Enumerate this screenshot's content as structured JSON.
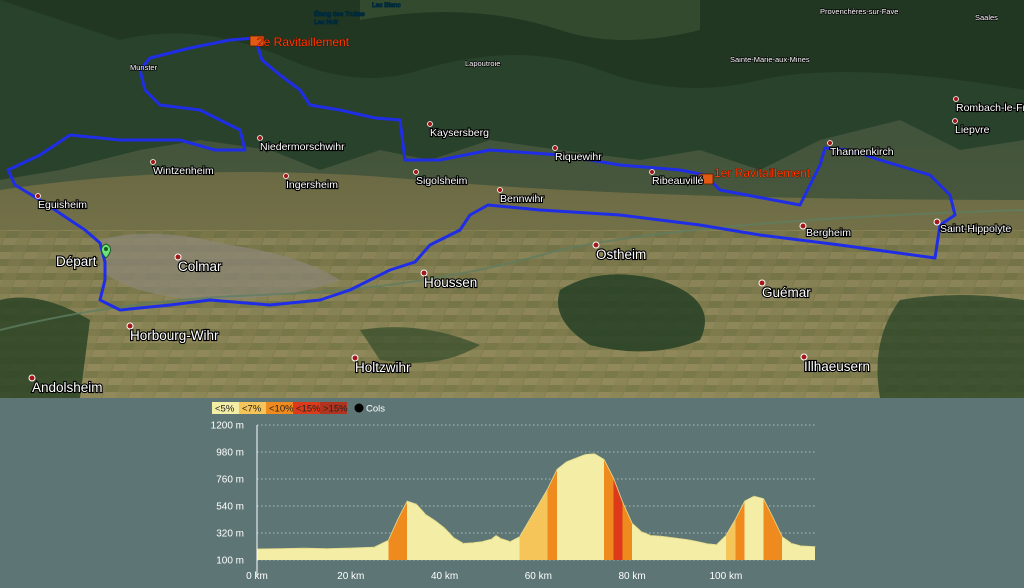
{
  "map": {
    "towns_major": [
      {
        "name": "Départ"
      },
      {
        "name": "Colmar"
      },
      {
        "name": "Horbourg-Wihr"
      },
      {
        "name": "Andolsheim"
      },
      {
        "name": "Holtzwihr"
      },
      {
        "name": "Houssen"
      },
      {
        "name": "Ostheim"
      },
      {
        "name": "Guémar"
      },
      {
        "name": "Illhaeusern"
      },
      {
        "name": "Bergheim"
      },
      {
        "name": "Saint-Hippolyte"
      }
    ],
    "towns_medium": [
      {
        "name": "Eguisheim"
      },
      {
        "name": "Wintzenheim"
      },
      {
        "name": "Ingersheim"
      },
      {
        "name": "Niedermorschwihr"
      },
      {
        "name": "Sigolsheim"
      },
      {
        "name": "Bennwihr"
      },
      {
        "name": "Kaysersberg"
      },
      {
        "name": "Riquewihr"
      },
      {
        "name": "Ribeauvillé"
      },
      {
        "name": "Thannenkirch"
      },
      {
        "name": "Liepvre"
      },
      {
        "name": "Rombach-le-Franc"
      }
    ],
    "towns_small": [
      {
        "name": "Munster"
      },
      {
        "name": "Lapoutroie"
      },
      {
        "name": "Sainte-Marie-aux-Mines"
      },
      {
        "name": "Provenchères-sur-Fave"
      },
      {
        "name": "Saales"
      }
    ],
    "lakes": [
      {
        "name": "Lac Blanc"
      },
      {
        "name": "Étang des Truites"
      },
      {
        "name": "Lac Noir"
      }
    ],
    "ravitaillements": [
      {
        "label": "2e Ravitaillement"
      },
      {
        "label": "1er Ravitaillement"
      }
    ]
  },
  "legend": {
    "items": [
      {
        "label": "<5%",
        "color": "#f3eda6"
      },
      {
        "label": "<7%",
        "color": "#f6c55a"
      },
      {
        "label": "<10%",
        "color": "#ef8a1e"
      },
      {
        "label": "<15%",
        "color": "#dc3a1a"
      },
      {
        "label": ">15%",
        "color": "#b2341f"
      }
    ],
    "cols_label": "Cols"
  },
  "chart_data": {
    "type": "area",
    "title": "",
    "xlabel": "",
    "ylabel": "",
    "ylim": [
      100,
      1200
    ],
    "xlim": [
      0,
      119
    ],
    "y_ticks": [
      "1200 m",
      "980 m",
      "760 m",
      "540 m",
      "320 m",
      "100 m"
    ],
    "x_ticks": [
      "0 km",
      "20 km",
      "40 km",
      "60 km",
      "80 km",
      "100 km"
    ],
    "grid": true,
    "x": [
      0,
      5,
      10,
      15,
      20,
      25,
      28,
      30,
      32,
      34,
      36,
      38,
      40,
      42,
      44,
      46,
      48,
      50,
      51,
      52,
      54,
      56,
      58,
      60,
      62,
      64,
      66,
      68,
      70,
      72,
      74,
      76,
      78,
      80,
      82,
      84,
      86,
      88,
      90,
      92,
      94,
      96,
      98,
      100,
      102,
      104,
      106,
      108,
      110,
      112,
      114,
      116,
      119
    ],
    "y": [
      190,
      193,
      196,
      192,
      198,
      205,
      260,
      430,
      580,
      555,
      470,
      420,
      360,
      280,
      235,
      240,
      250,
      270,
      300,
      275,
      250,
      290,
      420,
      550,
      680,
      840,
      900,
      930,
      960,
      965,
      920,
      770,
      570,
      400,
      330,
      300,
      295,
      285,
      275,
      265,
      250,
      232,
      225,
      300,
      430,
      580,
      620,
      600,
      450,
      290,
      235,
      215,
      208
    ]
  }
}
